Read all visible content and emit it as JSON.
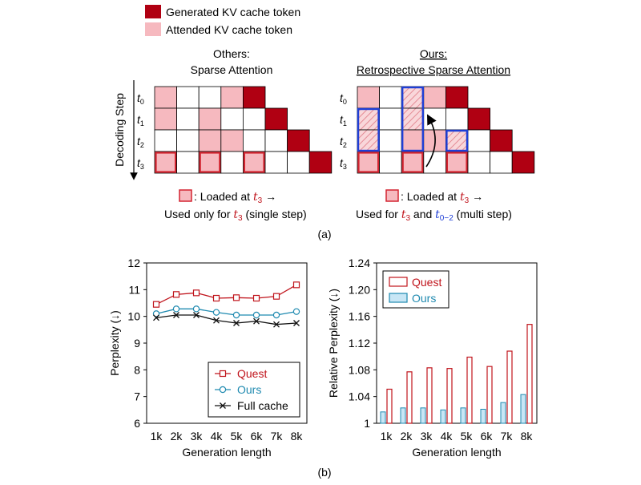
{
  "colors": {
    "generated": "#b00012",
    "attended": "#f6b9bf",
    "loaded_border": "#d42430",
    "ours_blue": "#1f3fd6",
    "quest_red": "#c0141c",
    "ours_line": "#1f8ab0",
    "ours_bar_fill": "#c8e6f5",
    "full_cache": "#111111",
    "grid_border": "#000000"
  },
  "legend_top": {
    "generated": "Generated KV cache token",
    "attended": "Attended KV cache token"
  },
  "left_panel": {
    "title_line1": "Others:",
    "title_line2": "Sparse Attention",
    "caption_line1_text": ": Loaded at ",
    "caption_line1_var": "t",
    "caption_line1_sub": "3",
    "caption_line1_arrow": "→",
    "caption_line2_pre": "Used only for ",
    "caption_line2_var": "t",
    "caption_line2_sub": "3",
    "caption_line2_post": " (single step)"
  },
  "right_panel": {
    "title_line1": "Ours:",
    "title_line2": "Retrospective Sparse Attention",
    "caption_line1_text": ": Loaded at ",
    "caption_line1_var": "t",
    "caption_line1_sub": "3",
    "caption_line1_arrow": "→",
    "caption_line2_pre": "Used for ",
    "caption_line2_var": "t",
    "caption_line2_sub": "3",
    "caption_line2_mid": " and ",
    "caption_line2_var2": "t",
    "caption_line2_sub2": "0−2",
    "caption_line2_post": " (multi step)"
  },
  "decoding_axis_label": "Decoding Step",
  "row_labels": [
    {
      "var": "t",
      "sub": "0"
    },
    {
      "var": "t",
      "sub": "1"
    },
    {
      "var": "t",
      "sub": "2"
    },
    {
      "var": "t",
      "sub": "3"
    }
  ],
  "grids": {
    "left": {
      "rows": [
        [
          "A",
          "E",
          "E",
          "A",
          "G",
          "N",
          "N"
        ],
        [
          "A",
          "E",
          "A",
          "E",
          "E",
          "G",
          "N"
        ],
        [
          "E",
          "E",
          "A",
          "A",
          "E",
          "E",
          "G"
        ],
        [
          "L",
          "E",
          "L",
          "E",
          "L",
          "E",
          "E",
          "G"
        ]
      ]
    },
    "right": {
      "rows": [
        [
          "A",
          "E",
          "H",
          "A",
          "G",
          "N",
          "N"
        ],
        [
          "H",
          "E",
          "H",
          "E",
          "E",
          "G",
          "N"
        ],
        [
          "H",
          "E",
          "A",
          "A",
          "H",
          "E",
          "G"
        ],
        [
          "L",
          "E",
          "L",
          "E",
          "L",
          "E",
          "E",
          "G"
        ]
      ]
    }
  },
  "label_a": "(a)",
  "label_b": "(b)",
  "chart_data": [
    {
      "type": "line",
      "categories": [
        "1k",
        "2k",
        "3k",
        "4k",
        "5k",
        "6k",
        "7k",
        "8k"
      ],
      "series": [
        {
          "name": "Quest",
          "values": [
            10.45,
            10.82,
            10.88,
            10.68,
            10.7,
            10.68,
            10.75,
            11.18
          ]
        },
        {
          "name": "Ours",
          "values": [
            10.1,
            10.28,
            10.28,
            10.15,
            10.05,
            10.05,
            10.05,
            10.18
          ]
        },
        {
          "name": "Full cache",
          "values": [
            9.95,
            10.05,
            10.05,
            9.85,
            9.75,
            9.82,
            9.7,
            9.75
          ]
        }
      ],
      "xlabel": "Generation length",
      "ylabel": "Perplexity (↓)",
      "ylim": [
        6,
        12
      ],
      "yticks": [
        "6",
        "7",
        "8",
        "9",
        "10",
        "11",
        "12"
      ],
      "legend_position": "bottom-right"
    },
    {
      "type": "bar",
      "categories": [
        "1k",
        "2k",
        "3k",
        "4k",
        "5k",
        "6k",
        "7k",
        "8k"
      ],
      "series": [
        {
          "name": "Quest",
          "values": [
            1.051,
            1.077,
            1.083,
            1.082,
            1.099,
            1.085,
            1.108,
            1.148
          ]
        },
        {
          "name": "Ours",
          "values": [
            1.017,
            1.023,
            1.023,
            1.02,
            1.023,
            1.021,
            1.031,
            1.043
          ]
        }
      ],
      "xlabel": "Generation length",
      "ylabel": "Relative Perplexity (↓)",
      "ylim": [
        1,
        1.24
      ],
      "yticks": [
        "1",
        "1.04",
        "1.08",
        "1.12",
        "1.16",
        "1.20",
        "1.24"
      ],
      "legend_position": "top-left"
    }
  ]
}
